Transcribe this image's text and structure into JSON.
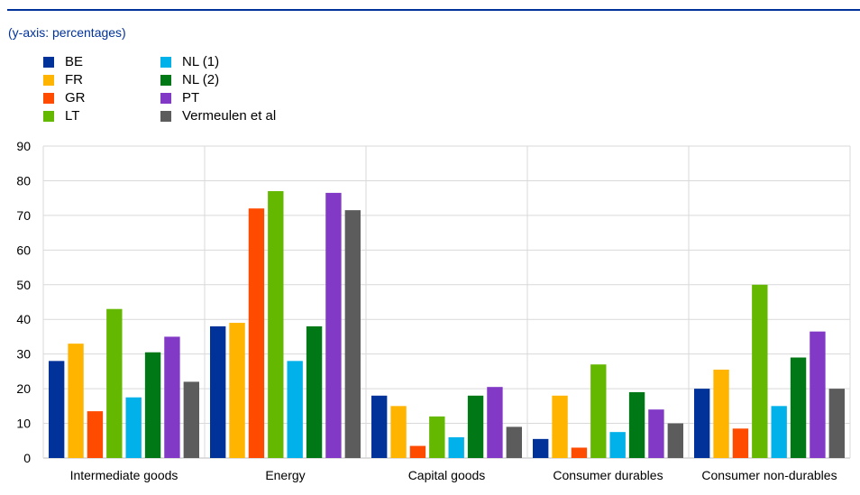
{
  "header": {
    "yaxis_note": "(y-axis: percentages)"
  },
  "chart_data": {
    "type": "bar",
    "title": "",
    "ylabel": "(y-axis: percentages)",
    "xlabel": "",
    "ylim": [
      0,
      90
    ],
    "yticks": [
      0,
      10,
      20,
      30,
      40,
      50,
      60,
      70,
      80,
      90
    ],
    "grid": true,
    "legend_placement": "top-left",
    "categories": [
      "Intermediate goods",
      "Energy",
      "Capital goods",
      "Consumer durables",
      "Consumer non-durables"
    ],
    "series": [
      {
        "name": "BE",
        "color": "#003299",
        "values": [
          28,
          38,
          18,
          5.5,
          20
        ]
      },
      {
        "name": "FR",
        "color": "#FFB400",
        "values": [
          33,
          39,
          15,
          18,
          25.5
        ]
      },
      {
        "name": "GR",
        "color": "#FF4B00",
        "values": [
          13.5,
          72,
          3.5,
          3,
          8.5
        ]
      },
      {
        "name": "LT",
        "color": "#65B800",
        "values": [
          43,
          77,
          12,
          27,
          50
        ]
      },
      {
        "name": "NL (1)",
        "color": "#00B1EA",
        "values": [
          17.5,
          28,
          6,
          7.5,
          15
        ]
      },
      {
        "name": "NL (2)",
        "color": "#007816",
        "values": [
          30.5,
          38,
          18,
          19,
          29
        ]
      },
      {
        "name": "PT",
        "color": "#8139C6",
        "values": [
          35,
          76.5,
          20.5,
          14,
          36.5
        ]
      },
      {
        "name": "Vermeulen et al",
        "color": "#5C5C5C",
        "values": [
          22,
          71.5,
          9,
          10,
          20
        ]
      }
    ]
  }
}
